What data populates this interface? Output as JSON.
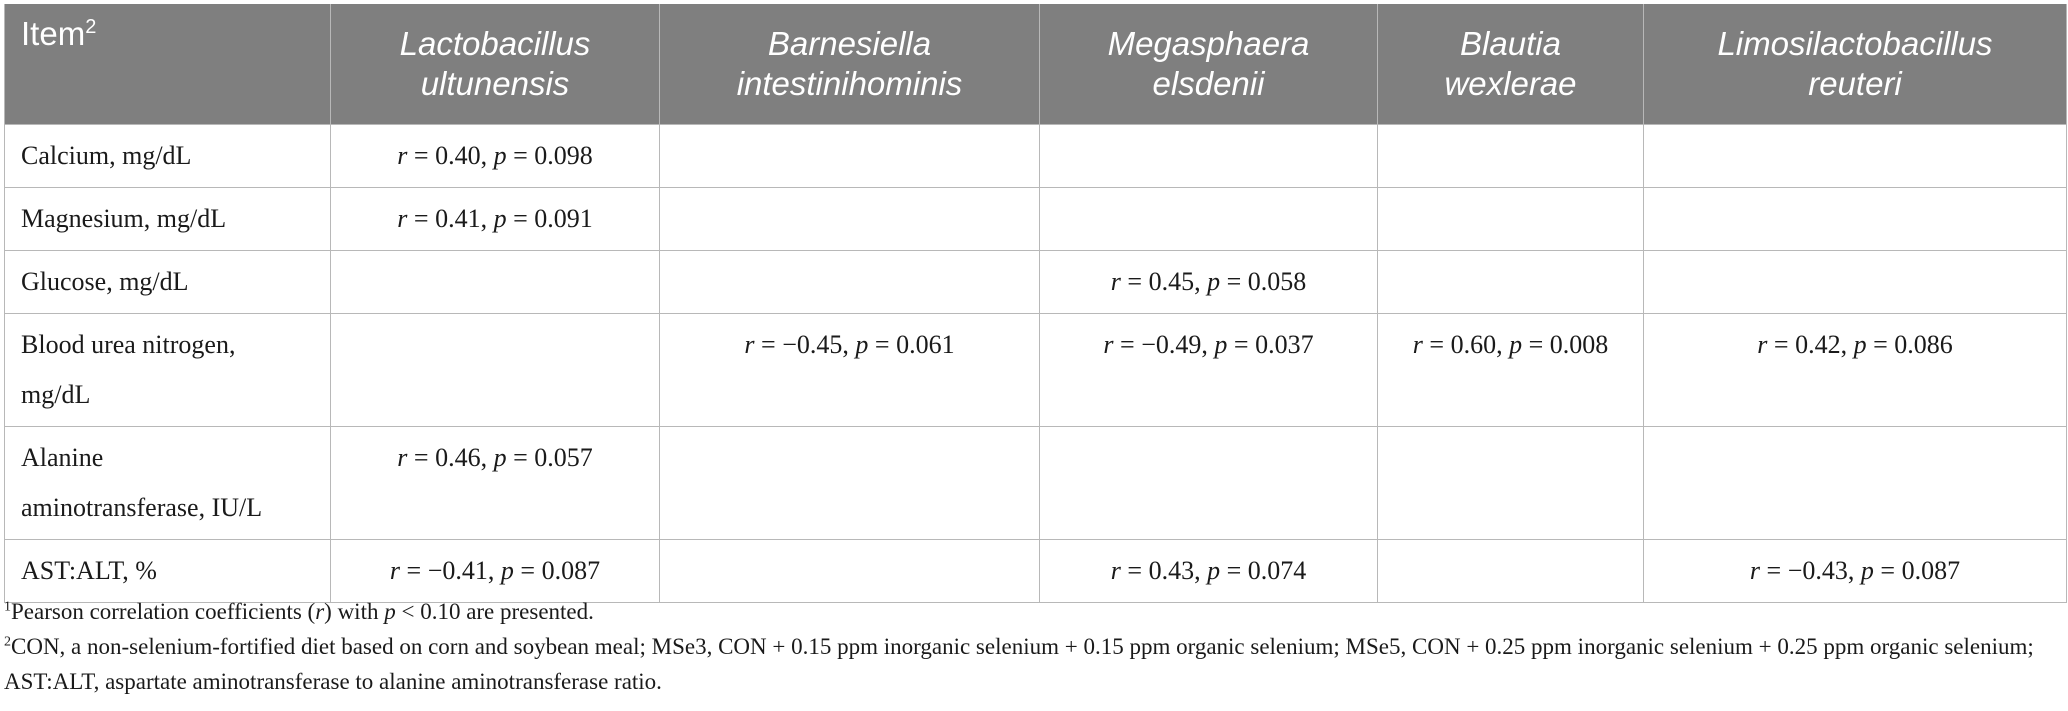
{
  "table": {
    "item_header": "Item",
    "item_header_sup": "2",
    "species": [
      {
        "line1": "Lactobacillus",
        "line2": "ultunensis"
      },
      {
        "line1": "Barnesiella",
        "line2": "intestinihominis"
      },
      {
        "line1": "Megasphaera",
        "line2": "elsdenii"
      },
      {
        "line1": "Blautia",
        "line2": "wexlerae"
      },
      {
        "line1": "Limosilactobacillus",
        "line2": "reuteri"
      }
    ],
    "rows": [
      {
        "item": "Calcium, mg/dL",
        "cells": [
          {
            "r": "0.40",
            "p": "0.098"
          },
          null,
          null,
          null,
          null
        ]
      },
      {
        "item": "Magnesium, mg/dL",
        "cells": [
          {
            "r": "0.41",
            "p": "0.091"
          },
          null,
          null,
          null,
          null
        ]
      },
      {
        "item": "Glucose, mg/dL",
        "cells": [
          null,
          null,
          {
            "r": "0.45",
            "p": "0.058"
          },
          null,
          null
        ]
      },
      {
        "item": "Blood urea nitrogen, mg/dL",
        "item_line1": "Blood urea nitrogen,",
        "item_line2": "mg/dL",
        "cells": [
          null,
          {
            "r": "−0.45",
            "p": "0.061"
          },
          {
            "r": "−0.49",
            "p": "0.037"
          },
          {
            "r": "0.60",
            "p": "0.008"
          },
          {
            "r": "0.42",
            "p": "0.086"
          }
        ]
      },
      {
        "item": "Alanine aminotransferase, IU/L",
        "item_line1": "Alanine",
        "item_line2": "aminotransferase, IU/L",
        "cells": [
          {
            "r": "0.46",
            "p": "0.057"
          },
          null,
          null,
          null,
          null
        ]
      },
      {
        "item": "AST:ALT, %",
        "cells": [
          {
            "r": "−0.41",
            "p": "0.087"
          },
          null,
          {
            "r": "0.43",
            "p": "0.074"
          },
          null,
          {
            "r": "−0.43",
            "p": "0.087"
          }
        ]
      }
    ]
  },
  "footnotes": {
    "fn1_sup": "1",
    "fn1_text_a": "Pearson correlation coefficients (",
    "fn1_r": "r",
    "fn1_text_b": ") with ",
    "fn1_p": "p",
    "fn1_text_c": " < 0.10 are presented.",
    "fn2_sup": "2",
    "fn2_text": "CON, a non-selenium-fortified diet based on corn and soybean meal; MSe3, CON + 0.15 ppm inorganic selenium + 0.15 ppm organic selenium; MSe5, CON + 0.25 ppm inorganic selenium + 0.25 ppm organic selenium; AST:ALT, aspartate aminotransferase to alanine aminotransferase ratio."
  }
}
